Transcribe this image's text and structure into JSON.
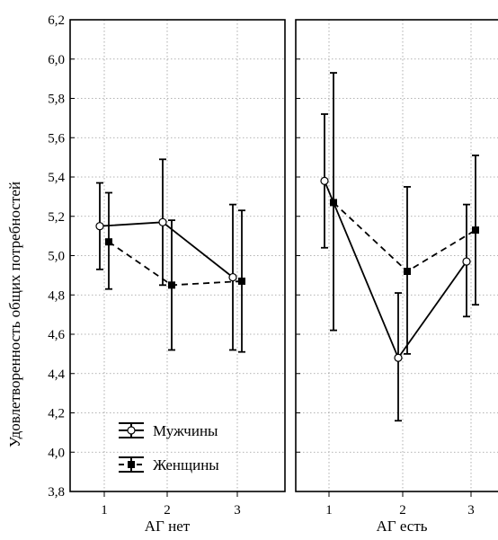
{
  "chart_data": {
    "type": "line",
    "ylabel": "Удовлетворенность общих потребностей",
    "ylim": [
      3.8,
      6.2
    ],
    "yticks": [
      3.8,
      4.0,
      4.2,
      4.4,
      4.6,
      4.8,
      5.0,
      5.2,
      5.4,
      5.6,
      5.8,
      6.0,
      6.2
    ],
    "ytick_labels": [
      "3,8",
      "4,0",
      "4,2",
      "4,4",
      "4,6",
      "4,8",
      "5,0",
      "5,2",
      "5,4",
      "5,6",
      "5,8",
      "6,0",
      "6,2"
    ],
    "grid": true,
    "legend_position": "bottom-left of left panel",
    "legend": [
      "Мужчины",
      "Женщины"
    ],
    "panels": [
      {
        "xlabel": "АГ нет",
        "categories": [
          "1",
          "2",
          "3"
        ],
        "series": [
          {
            "name": "Мужчины",
            "marker": "open-circle",
            "line": "solid",
            "values": [
              5.15,
              5.17,
              4.89
            ],
            "lower": [
              4.93,
              4.85,
              4.52
            ],
            "upper": [
              5.37,
              5.49,
              5.26
            ]
          },
          {
            "name": "Женщины",
            "marker": "filled-square",
            "line": "dashed",
            "values": [
              5.07,
              4.85,
              4.87
            ],
            "lower": [
              4.83,
              4.52,
              4.51
            ],
            "upper": [
              5.32,
              5.18,
              5.23
            ]
          }
        ]
      },
      {
        "xlabel": "АГ есть",
        "categories": [
          "1",
          "2",
          "3"
        ],
        "series": [
          {
            "name": "Мужчины",
            "marker": "open-circle",
            "line": "solid",
            "values": [
              5.38,
              4.48,
              4.97
            ],
            "lower": [
              5.04,
              4.16,
              4.69
            ],
            "upper": [
              5.72,
              4.81,
              5.26
            ]
          },
          {
            "name": "Женщины",
            "marker": "filled-square",
            "line": "dashed",
            "values": [
              5.27,
              4.92,
              5.13
            ],
            "lower": [
              4.62,
              4.5,
              4.75
            ],
            "upper": [
              5.93,
              5.35,
              5.51
            ]
          }
        ]
      }
    ]
  }
}
